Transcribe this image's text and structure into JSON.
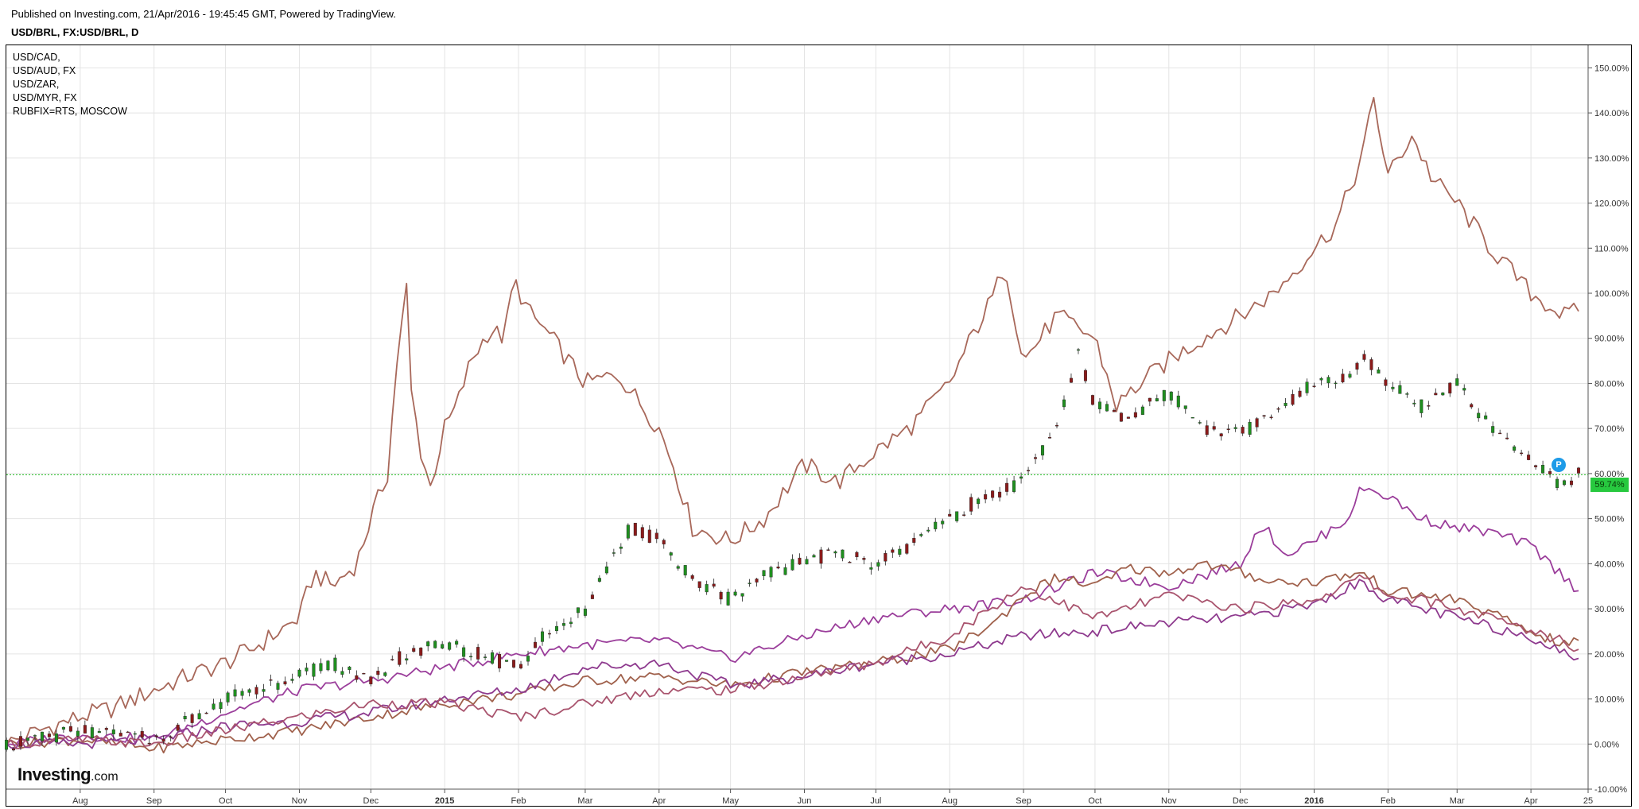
{
  "header": {
    "published": "Published on Investing.com, 21/Apr/2016 - 19:45:45 GMT, Powered by TradingView.",
    "symbol": "USD/BRL, FX:USD/BRL, D"
  },
  "legend": {
    "items": [
      "USD/CAD,",
      "USD/AUD, FX",
      "USD/ZAR,",
      "USD/MYR, FX",
      "RUBFIX=RTS, MOSCOW"
    ]
  },
  "logo": {
    "brand": "Investing",
    "suffix": ".com"
  },
  "last_value_badge": "59.74%",
  "marker_label": "P",
  "colors": {
    "rub": "#a8685a",
    "brl_up": "#1f8f1f",
    "brl_down": "#8b1a1a",
    "purple": "#9b3e9b",
    "brown": "#a0614c",
    "gridline": "#e4e4e4",
    "current_line": "#22bb22"
  },
  "chart_data": {
    "type": "line",
    "title": "USD/BRL, FX:USD/BRL, D",
    "ylabel": "",
    "y_unit": "%",
    "ylim": [
      -10,
      155
    ],
    "y_ticks": [
      "150.00%",
      "140.00%",
      "130.00%",
      "120.00%",
      "110.00%",
      "100.00%",
      "90.00%",
      "80.00%",
      "70.00%",
      "60.00%",
      "50.00%",
      "40.00%",
      "30.00%",
      "20.00%",
      "10.00%",
      "0.00%",
      "-10.00%"
    ],
    "x_ticks": [
      "Aug",
      "Sep",
      "Oct",
      "Nov",
      "Dec",
      "2015",
      "Feb",
      "Mar",
      "Apr",
      "May",
      "Jun",
      "Jul",
      "Aug",
      "Sep",
      "Oct",
      "Nov",
      "Dec",
      "2016",
      "Feb",
      "Mar",
      "Apr",
      "25"
    ],
    "grid": true,
    "legend_position": "top-left",
    "x_range": [
      "2014-07-01",
      "2016-04-25"
    ],
    "current_value": 59.74,
    "series": [
      {
        "name": "RUBFIX=RTS, MOSCOW",
        "color": "#a8685a",
        "dates": [
          "2014-07-01",
          "2014-07-15",
          "2014-08-01",
          "2014-08-15",
          "2014-09-01",
          "2014-09-15",
          "2014-10-01",
          "2014-10-15",
          "2014-11-01",
          "2014-11-07",
          "2014-11-15",
          "2014-11-25",
          "2014-12-01",
          "2014-12-08",
          "2014-12-12",
          "2014-12-16",
          "2014-12-18",
          "2014-12-22",
          "2014-12-26",
          "2015-01-01",
          "2015-01-06",
          "2015-01-12",
          "2015-01-20",
          "2015-01-26",
          "2015-01-30",
          "2015-02-05",
          "2015-02-15",
          "2015-03-01",
          "2015-03-15",
          "2015-04-01",
          "2015-04-07",
          "2015-04-15",
          "2015-05-01",
          "2015-05-15",
          "2015-06-01",
          "2015-06-15",
          "2015-07-01",
          "2015-07-15",
          "2015-08-01",
          "2015-08-10",
          "2015-08-20",
          "2015-08-24",
          "2015-09-01",
          "2015-09-15",
          "2015-10-01",
          "2015-10-10",
          "2015-10-20",
          "2015-11-01",
          "2015-11-15",
          "2015-12-01",
          "2015-12-15",
          "2016-01-01",
          "2016-01-10",
          "2016-01-21",
          "2016-01-26",
          "2016-02-01",
          "2016-02-11",
          "2016-02-20",
          "2016-03-01",
          "2016-03-15",
          "2016-04-01",
          "2016-04-15",
          "2016-04-21"
        ],
        "values": [
          0,
          3,
          6,
          8,
          12,
          15,
          18,
          22,
          28,
          38,
          35,
          40,
          50,
          60,
          85,
          101,
          78,
          65,
          57,
          70,
          75,
          85,
          92,
          90,
          103,
          96,
          90,
          80,
          82,
          70,
          62,
          48,
          45,
          50,
          62,
          58,
          65,
          70,
          80,
          90,
          100,
          107,
          85,
          95,
          90,
          75,
          80,
          85,
          90,
          95,
          100,
          110,
          115,
          130,
          143,
          126,
          135,
          125,
          120,
          110,
          100,
          95,
          96
        ]
      },
      {
        "name": "USD/BRL, FX:USD/BRL, D",
        "color": "#1f8f1f",
        "dates": [
          "2014-07-01",
          "2014-07-15",
          "2014-08-01",
          "2014-08-15",
          "2014-09-01",
          "2014-09-15",
          "2014-10-01",
          "2014-10-15",
          "2014-11-01",
          "2014-11-15",
          "2014-12-01",
          "2014-12-15",
          "2015-01-01",
          "2015-01-15",
          "2015-02-01",
          "2015-02-15",
          "2015-03-01",
          "2015-03-10",
          "2015-03-20",
          "2015-04-01",
          "2015-04-15",
          "2015-05-01",
          "2015-05-15",
          "2015-06-01",
          "2015-06-15",
          "2015-07-01",
          "2015-07-15",
          "2015-08-01",
          "2015-08-15",
          "2015-09-01",
          "2015-09-15",
          "2015-09-24",
          "2015-10-01",
          "2015-10-15",
          "2015-11-01",
          "2015-11-15",
          "2015-12-01",
          "2015-12-15",
          "2016-01-01",
          "2016-01-15",
          "2016-01-21",
          "2016-02-01",
          "2016-02-15",
          "2016-03-01",
          "2016-03-15",
          "2016-04-01",
          "2016-04-15",
          "2016-04-21"
        ],
        "values": [
          0,
          1,
          3,
          2,
          1,
          5,
          10,
          12,
          15,
          18,
          14,
          20,
          22,
          20,
          17,
          26,
          30,
          38,
          48,
          45,
          37,
          32,
          37,
          41,
          42,
          40,
          44,
          50,
          55,
          58,
          70,
          87,
          75,
          72,
          78,
          70,
          69,
          73,
          80,
          82,
          86,
          80,
          75,
          80,
          70,
          63,
          57,
          59.74
        ]
      },
      {
        "name": "USD/ZAR,",
        "color": "#9b3e9b",
        "dates": [
          "2014-07-01",
          "2014-08-01",
          "2014-09-01",
          "2014-10-01",
          "2014-11-01",
          "2014-12-01",
          "2015-01-01",
          "2015-02-01",
          "2015-03-01",
          "2015-04-01",
          "2015-05-01",
          "2015-06-01",
          "2015-07-01",
          "2015-08-01",
          "2015-09-01",
          "2015-10-01",
          "2015-11-01",
          "2015-12-01",
          "2015-12-10",
          "2015-12-20",
          "2016-01-01",
          "2016-01-15",
          "2016-01-21",
          "2016-02-01",
          "2016-02-15",
          "2016-03-01",
          "2016-03-15",
          "2016-04-01",
          "2016-04-15",
          "2016-04-21"
        ],
        "values": [
          0,
          2,
          1,
          7,
          12,
          14,
          17,
          20,
          22,
          23,
          19,
          24,
          28,
          30,
          32,
          38,
          35,
          40,
          49,
          42,
          45,
          50,
          57,
          55,
          50,
          48,
          47,
          44,
          37,
          34
        ]
      },
      {
        "name": "USD/MYR, FX",
        "color": "#a0614c",
        "dates": [
          "2014-07-01",
          "2014-08-01",
          "2014-09-01",
          "2014-10-01",
          "2014-11-01",
          "2014-12-01",
          "2015-01-01",
          "2015-02-01",
          "2015-03-01",
          "2015-04-01",
          "2015-05-01",
          "2015-06-01",
          "2015-07-01",
          "2015-08-01",
          "2015-08-20",
          "2015-09-01",
          "2015-09-15",
          "2015-10-01",
          "2015-10-15",
          "2015-11-01",
          "2015-11-15",
          "2015-12-01",
          "2015-12-15",
          "2016-01-01",
          "2016-01-21",
          "2016-02-01",
          "2016-02-15",
          "2016-03-01",
          "2016-03-15",
          "2016-04-01",
          "2016-04-15",
          "2016-04-21"
        ],
        "values": [
          0,
          1,
          -1,
          1,
          3,
          6,
          9,
          11,
          14,
          15,
          13,
          16,
          18,
          21,
          27,
          33,
          37,
          35,
          39,
          38,
          40,
          38,
          36,
          36,
          38,
          34,
          33,
          32,
          29,
          25,
          22,
          23
        ]
      },
      {
        "name": "USD/CAD,",
        "color": "#8e3a8e",
        "dates": [
          "2014-07-01",
          "2014-08-01",
          "2014-09-01",
          "2014-10-01",
          "2014-11-01",
          "2014-12-01",
          "2015-01-01",
          "2015-02-01",
          "2015-03-01",
          "2015-04-01",
          "2015-05-01",
          "2015-06-01",
          "2015-07-01",
          "2015-08-01",
          "2015-09-01",
          "2015-10-01",
          "2015-11-01",
          "2015-12-01",
          "2016-01-01",
          "2016-01-21",
          "2016-02-01",
          "2016-02-15",
          "2016-03-01",
          "2016-03-15",
          "2016-04-01",
          "2016-04-15",
          "2016-04-21"
        ],
        "values": [
          0,
          0,
          1,
          4,
          5,
          7,
          10,
          12,
          17,
          18,
          13,
          15,
          18,
          20,
          24,
          25,
          27,
          28,
          31,
          36,
          32,
          30,
          28,
          26,
          24,
          20,
          19
        ]
      },
      {
        "name": "USD/AUD, FX",
        "color": "#a9546e",
        "dates": [
          "2014-07-01",
          "2014-08-01",
          "2014-09-01",
          "2014-10-01",
          "2014-11-01",
          "2014-12-01",
          "2015-01-01",
          "2015-02-01",
          "2015-03-01",
          "2015-04-01",
          "2015-05-01",
          "2015-06-01",
          "2015-07-01",
          "2015-08-01",
          "2015-09-01",
          "2015-10-01",
          "2015-11-01",
          "2015-12-01",
          "2016-01-01",
          "2016-01-21",
          "2016-02-01",
          "2016-02-15",
          "2016-03-01",
          "2016-03-15",
          "2016-04-01",
          "2016-04-15",
          "2016-04-21"
        ],
        "values": [
          0,
          1,
          0,
          3,
          6,
          9,
          9,
          6,
          9,
          12,
          12,
          15,
          18,
          24,
          35,
          28,
          33,
          30,
          32,
          37,
          33,
          32,
          30,
          28,
          25,
          23,
          21
        ]
      }
    ]
  }
}
